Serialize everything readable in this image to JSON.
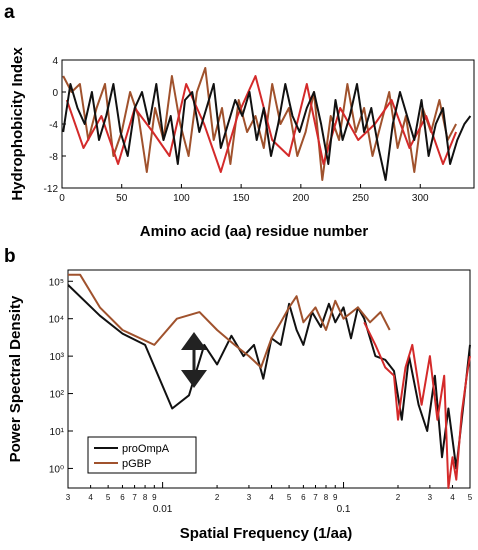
{
  "panel_labels": {
    "a": "a",
    "b": "b"
  },
  "chart_data": [
    {
      "type": "line",
      "panel": "a",
      "xlabel": "Amino acid (aa) residue number",
      "ylabel": "Hydrophobicity Index",
      "xlim": [
        0,
        345
      ],
      "ylim": [
        -12,
        4
      ],
      "xticks": [
        0,
        50,
        100,
        150,
        200,
        250,
        300
      ],
      "yticks": [
        4,
        0,
        -4,
        -8,
        -12
      ],
      "ytick_labels": [
        "4",
        "0",
        "-4",
        "-8",
        "-12"
      ],
      "series": [
        {
          "color": "#a0522d",
          "x": [
            1,
            8,
            15,
            22,
            29,
            36,
            43,
            50,
            57,
            64,
            71,
            78,
            85,
            92,
            99,
            106,
            113,
            120,
            127,
            134,
            141,
            148,
            155,
            162,
            169,
            176,
            183,
            190,
            197,
            204,
            211,
            218,
            225,
            232,
            239,
            246,
            253,
            260,
            267,
            274,
            281,
            288,
            295,
            302,
            309,
            316,
            323,
            330
          ],
          "y": [
            2,
            0,
            1,
            -6,
            -2,
            1,
            -8,
            -5,
            0,
            -3,
            -10,
            -2,
            -6,
            2,
            -4,
            -8,
            0,
            3,
            -6,
            -2,
            -9,
            -1,
            -5,
            -3,
            -7,
            1,
            -4,
            -2,
            -8,
            -5,
            0,
            -11,
            -3,
            -6,
            1,
            -5,
            -2,
            -8,
            -4,
            0,
            -7,
            -3,
            -10,
            -2,
            -5,
            -1,
            -6,
            -4
          ]
        },
        {
          "color": "#d42a2a",
          "x": [
            4,
            18,
            33,
            47,
            61,
            76,
            90,
            104,
            119,
            133,
            147,
            162,
            176,
            190,
            205,
            219,
            233,
            248,
            262,
            276,
            291,
            305,
            319,
            330
          ],
          "y": [
            -1,
            -7,
            -3,
            -9,
            -2,
            -5,
            -8,
            1,
            -4,
            -10,
            -3,
            2,
            -6,
            -8,
            1,
            -9,
            -2,
            -6,
            -4,
            -1,
            -7,
            -3,
            -9,
            -5
          ]
        },
        {
          "color": "#111111",
          "x": [
            1,
            7,
            13,
            19,
            25,
            31,
            37,
            43,
            49,
            55,
            61,
            67,
            73,
            79,
            85,
            91,
            97,
            103,
            109,
            115,
            121,
            127,
            133,
            139,
            145,
            151,
            157,
            163,
            169,
            175,
            181,
            187,
            193,
            199,
            205,
            211,
            217,
            223,
            229,
            235,
            241,
            247,
            253,
            259,
            265,
            271,
            277,
            283,
            289,
            295,
            301,
            307,
            313,
            319,
            325,
            331,
            337,
            342
          ],
          "y": [
            -5,
            1,
            -2,
            -4,
            0,
            -6,
            -3,
            1,
            -5,
            -8,
            -2,
            0,
            -4,
            1,
            -6,
            -3,
            -9,
            -1,
            0,
            -5,
            -2,
            1,
            -7,
            -4,
            -1,
            -3,
            0,
            -6,
            -2,
            -8,
            -4,
            1,
            -3,
            -5,
            -2,
            0,
            -4,
            -9,
            -1,
            -6,
            -3,
            1,
            -5,
            -2,
            -7,
            -11,
            -4,
            0,
            -3,
            -6,
            -1,
            -8,
            -4,
            -2,
            -9,
            -6,
            -4,
            -3
          ]
        }
      ]
    },
    {
      "type": "line",
      "panel": "b",
      "xlabel": "Spatial Frequency (1/aa)",
      "ylabel": "Power Spectral Density",
      "xscale": "log",
      "yscale": "log",
      "xlim": [
        0.003,
        0.5
      ],
      "ylim": [
        0.3,
        200000
      ],
      "xtick_major": [
        0.01,
        0.1
      ],
      "xtick_major_labels": [
        "0.01",
        "0.1"
      ],
      "xtick_minor": [
        0.003,
        0.004,
        0.005,
        0.006,
        0.007,
        0.008,
        0.009,
        0.02,
        0.03,
        0.04,
        0.05,
        0.06,
        0.07,
        0.08,
        0.09,
        0.2,
        0.3,
        0.4,
        0.5
      ],
      "xtick_minor_labels": [
        "3",
        "4",
        "5",
        "6",
        "7",
        "8",
        "9",
        "2",
        "3",
        "4",
        "5",
        "6",
        "7",
        "8",
        "9",
        "2",
        "3",
        "4",
        "5"
      ],
      "yticks": [
        1,
        10,
        100,
        1000,
        10000,
        100000
      ],
      "ytick_labels": [
        "10⁰",
        "10¹",
        "10²",
        "10³",
        "10⁴",
        "10⁵"
      ],
      "legend": {
        "position": "lower-left",
        "entries": [
          "proOmpA",
          "pGBP"
        ]
      },
      "series": [
        {
          "name": "proOmpA",
          "color": "#111111",
          "x": [
            0.003,
            0.0045,
            0.006,
            0.008,
            0.0113,
            0.014,
            0.017,
            0.02,
            0.024,
            0.028,
            0.032,
            0.036,
            0.04,
            0.045,
            0.05,
            0.055,
            0.06,
            0.067,
            0.075,
            0.083,
            0.09,
            0.1,
            0.11,
            0.12,
            0.13,
            0.15,
            0.17,
            0.19,
            0.21,
            0.23,
            0.26,
            0.29,
            0.32,
            0.35,
            0.38,
            0.42,
            0.46,
            0.5
          ],
          "y": [
            80000,
            12000,
            4000,
            2000,
            40,
            90,
            2000,
            600,
            3500,
            1000,
            2000,
            250,
            3000,
            2000,
            25000,
            5000,
            2000,
            15000,
            6000,
            25000,
            8000,
            20000,
            3000,
            20000,
            10000,
            1000,
            800,
            400,
            20,
            1000,
            50,
            10,
            300,
            2,
            40,
            1,
            50,
            2000
          ]
        },
        {
          "name": "pGBP",
          "color": "#a0522d",
          "x": [
            0.003,
            0.0035,
            0.0045,
            0.006,
            0.009,
            0.012,
            0.016,
            0.02,
            0.025,
            0.03,
            0.035,
            0.04,
            0.045,
            0.05,
            0.055,
            0.06,
            0.07,
            0.08,
            0.09,
            0.1,
            0.12,
            0.14,
            0.16,
            0.18
          ],
          "y": [
            150000,
            150000,
            20000,
            5000,
            2000,
            10000,
            15000,
            5000,
            2000,
            1000,
            500,
            3000,
            8000,
            20000,
            40000,
            8000,
            20000,
            5000,
            30000,
            10000,
            20000,
            8000,
            15000,
            5000
          ]
        },
        {
          "name": "",
          "color": "#d42a2a",
          "x": [
            0.13,
            0.15,
            0.17,
            0.19,
            0.2,
            0.22,
            0.24,
            0.27,
            0.3,
            0.33,
            0.36,
            0.38,
            0.4,
            0.42,
            0.45,
            0.48,
            0.5
          ],
          "y": [
            8000,
            2000,
            500,
            300,
            20,
            500,
            2000,
            50,
            1000,
            20,
            300,
            0.3,
            2,
            0.5,
            30,
            300,
            1000
          ]
        }
      ]
    }
  ]
}
